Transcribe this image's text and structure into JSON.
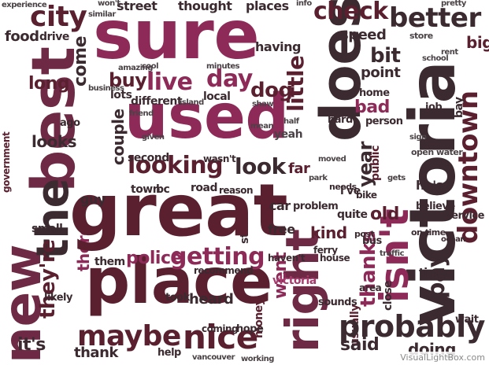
{
  "colors": {
    "magenta": "#8e2a58",
    "dark": "#3b2a30",
    "burgundy": "#5a2030",
    "wine": "#6e2a45",
    "gray": "#4a4246",
    "pink": "#a83b6e"
  },
  "words": {
    "great": "great",
    "place": "place",
    "used": "used",
    "sure": "sure",
    "best": "best",
    "victoria": "victoria",
    "right": "right",
    "does": "does",
    "new": "new",
    "probably": "probably",
    "nice": "nice",
    "better": "better",
    "check": "check",
    "city": "city",
    "looking": "looking",
    "getting": "getting",
    "police": "police",
    "live": "live",
    "day": "day",
    "maybe": "maybe",
    "the": "the",
    "theyre": "they're",
    "there": "there",
    "isnt": "isn't",
    "downtown": "downtown",
    "thanks": "thanks",
    "look": "look",
    "little": "little",
    "pay": "pay",
    "dog": "dog",
    "buy": "buy",
    "long": "long",
    "food": "food",
    "come": "come",
    "street": "street",
    "thought": "thought",
    "places": "places",
    "speed": "speed",
    "bit": "bit",
    "point": "point",
    "bad": "bad",
    "said": "said",
    "doing": "doing",
    "old": "old",
    "kind": "kind",
    "times": "times",
    "year": "year",
    "went": "went",
    "heard": "heard",
    "thank": "thank",
    "its": "it's",
    "big": "big",
    "bay": "bay",
    "hes": "he's",
    "looks": "looks",
    "car": "car",
    "free": "free",
    "yeah": "yeah",
    "having": "having",
    "couple": "couple",
    "lots": "lots",
    "different": "different",
    "local": "local",
    "second": "second",
    "far": "far",
    "public": "public",
    "sounds": "sounds",
    "ive": "i've",
    "quite": "quite",
    "guy": "guy",
    "drive": "drive",
    "problem": "problem",
    "area": "area",
    "close": "close",
    "service": "service",
    "believe": "believe",
    "money": "money",
    "usually": "usually",
    "home": "home",
    "bus": "bus",
    "wait": "wait",
    "run": "run",
    "small": "small",
    "took": "took",
    "coming": "coming",
    "help": "help",
    "hope": "hope",
    "person": "person",
    "hard": "hard",
    "job": "job",
    "them": "them",
    "ago": "ago",
    "town": "town",
    "road": "road",
    "stuff": "stuff",
    "open_water": "open water",
    "ferry": "ferry",
    "likely": "likely",
    "bike": "bike",
    "reason": "reason",
    "needs": "needs",
    "wasnt": "wasn't",
    "recommend": "recommend",
    "havent": "haven't",
    "house": "house",
    "government": "government",
    "victoria_small": "victoria",
    "store": "store",
    "cool": "cool",
    "amazing": "amazing",
    "business": "business",
    "island": "island",
    "vancouver": "vancouver",
    "experience": "experience",
    "pretty": "pretty",
    "info": "info",
    "on_time": "on time.",
    "post": "post",
    "ocean": "ocean",
    "half": "half",
    "mean": "mean",
    "traffic": "traffic",
    "wont": "won't",
    "similar": "similar",
    "bc": "bc",
    "minutes": "minutes",
    "park": "park",
    "sign": "sign",
    "rent": "rent",
    "working": "working",
    "friend": "friend",
    "given": "given",
    "moved": "moved",
    "gets": "gets",
    "school": "school",
    "shaw": "shaw"
  },
  "watermark": "VisualLightBox.com"
}
